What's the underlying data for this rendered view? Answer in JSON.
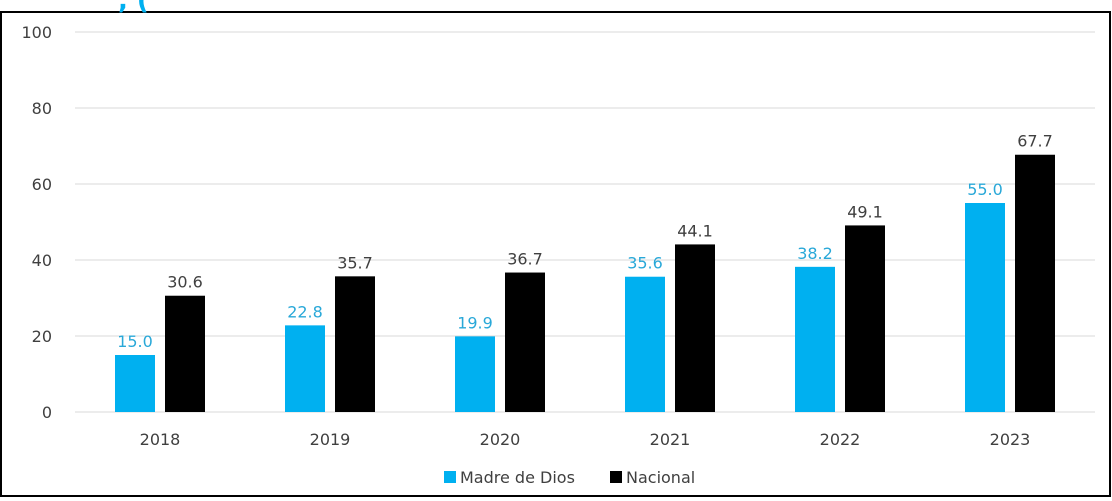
{
  "chart_data": {
    "type": "bar",
    "categories": [
      "2018",
      "2019",
      "2020",
      "2021",
      "2022",
      "2023"
    ],
    "series": [
      {
        "name": "Madre de Dios",
        "values": [
          15.0,
          22.8,
          19.9,
          35.6,
          38.2,
          55.0
        ],
        "color": "#00b0f0"
      },
      {
        "name": "Nacional",
        "values": [
          30.6,
          35.7,
          36.7,
          44.1,
          49.1,
          67.7
        ],
        "color": "#000000"
      }
    ],
    "ylim": [
      0,
      100
    ],
    "yticks": [
      0,
      20,
      40,
      60,
      80,
      100
    ],
    "data_labels": true,
    "grid": "horizontal",
    "legend_position": "bottom-center",
    "title_fragment": ", (",
    "colors": {
      "label_md": "#29a8d8",
      "label_nac": "#404040",
      "grid": "#d9d9d9",
      "axis_text": "#404040",
      "title_color": "#00b0f0"
    }
  }
}
